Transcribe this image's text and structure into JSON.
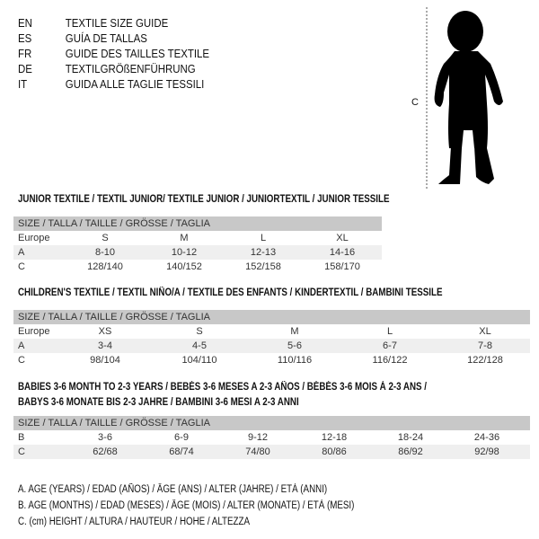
{
  "languages": [
    {
      "code": "EN",
      "title": "TEXTILE SIZE GUIDE"
    },
    {
      "code": "ES",
      "title": "GUÍA DE TALLAS"
    },
    {
      "code": "FR",
      "title": "GUIDE DES TAILLES TEXTILE"
    },
    {
      "code": "DE",
      "title": "TEXTILGRÖßENFÜHRUNG"
    },
    {
      "code": "IT",
      "title": "GUIDA ALLE TAGLIE TESSILI"
    }
  ],
  "figure": {
    "label": "C",
    "icon": "child-silhouette"
  },
  "size_header": "SIZE / TALLA / TAILLE / GRÖSSE / TAGLIA",
  "junior": {
    "title": "JUNIOR TEXTILE / TEXTIL JUNIOR/ TEXTILE JUNIOR / JUNIORTEXTIL / JUNIOR TESSILE",
    "rows": [
      {
        "label": "Europe",
        "values": [
          "S",
          "M",
          "L",
          "XL"
        ]
      },
      {
        "label": "A",
        "values": [
          "8-10",
          "10-12",
          "12-13",
          "14-16"
        ]
      },
      {
        "label": "C",
        "values": [
          "128/140",
          "140/152",
          "152/158",
          "158/170"
        ]
      }
    ]
  },
  "children": {
    "title": "CHILDREN'S TEXTILE / TEXTIL NIÑO/A / TEXTILE DES ENFANTS / KINDERTEXTIL / BAMBINI TESSILE",
    "rows": [
      {
        "label": "Europe",
        "values": [
          "XS",
          "S",
          "M",
          "L",
          "XL"
        ]
      },
      {
        "label": "A",
        "values": [
          "3-4",
          "4-5",
          "5-6",
          "6-7",
          "7-8"
        ]
      },
      {
        "label": "C",
        "values": [
          "98/104",
          "104/110",
          "110/116",
          "116/122",
          "122/128"
        ]
      }
    ]
  },
  "babies": {
    "title_1": "BABIES 3-6 MONTH TO 2-3 YEARS / BEBÉS 3-6 MESES A 2-3 AÑOS / BÉBÉS 3-6 MOIS À 2-3 ANS /",
    "title_2": "BABYS 3-6 MONATE BIS 2-3 JAHRE / BAMBINI 3-6 MESI A 2-3 ANNI",
    "rows": [
      {
        "label": "B",
        "values": [
          "3-6",
          "6-9",
          "9-12",
          "12-18",
          "18-24",
          "24-36"
        ]
      },
      {
        "label": "C",
        "values": [
          "62/68",
          "68/74",
          "74/80",
          "80/86",
          "86/92",
          "92/98"
        ]
      }
    ]
  },
  "legend": [
    "A. AGE (YEARS) / EDAD (AÑOS) / ÂGE (ANS) / ALTER (JAHRE) / ETÀ (ANNI)",
    "B. AGE (MONTHS) / EDAD (MESES) / ÂGE (MOIS) / ALTER (MONATE) / ETÀ (MESI)",
    "C. (cm) HEIGHT / ALTURA / HAUTEUR / HÖHE / ALTEZZA"
  ]
}
